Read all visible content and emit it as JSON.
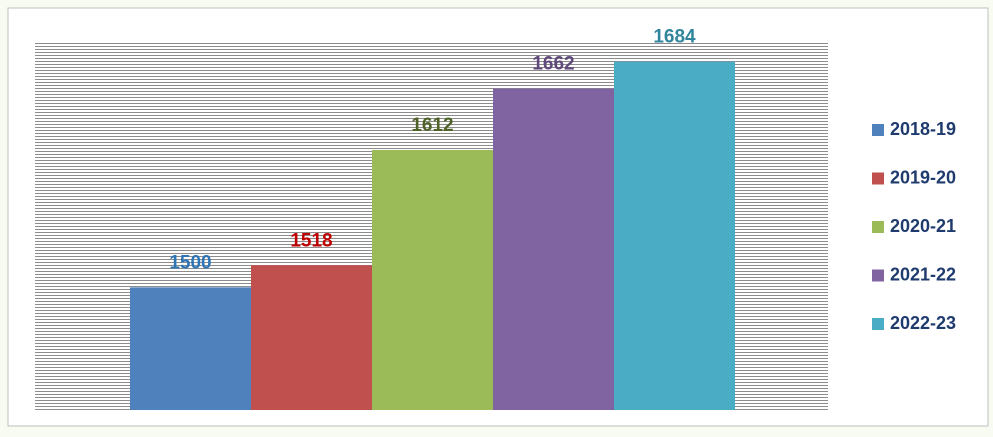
{
  "chart_data": {
    "type": "bar",
    "series": [
      {
        "name": "2018-19",
        "color": "#4f81bd",
        "label_color": "#2e75b6",
        "values": [
          1500
        ]
      },
      {
        "name": "2019-20",
        "color": "#c0504d",
        "label_color": "#c00000",
        "values": [
          1518
        ]
      },
      {
        "name": "2020-21",
        "color": "#9bbb59",
        "label_color": "#4f6228",
        "values": [
          1612
        ]
      },
      {
        "name": "2021-22",
        "color": "#8064a2",
        "label_color": "#5f497a",
        "values": [
          1662
        ]
      },
      {
        "name": "2022-23",
        "color": "#4bacc6",
        "label_color": "#31859c",
        "values": [
          1684
        ]
      }
    ],
    "ylim": [
      1400,
      1700
    ],
    "legend": "right"
  }
}
